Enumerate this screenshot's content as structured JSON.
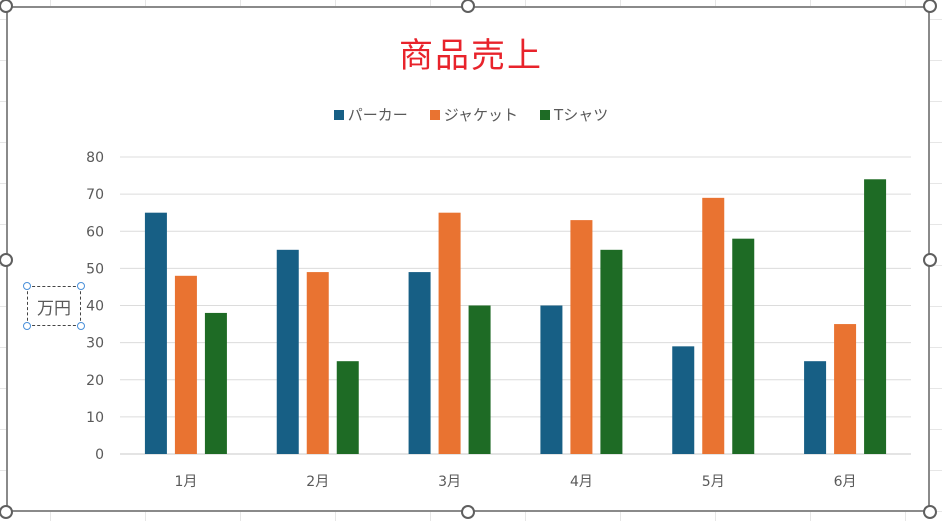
{
  "chart_data": {
    "type": "bar",
    "title": "商品売上",
    "ylabel": "万円",
    "categories": [
      "1月",
      "2月",
      "3月",
      "4月",
      "5月",
      "6月"
    ],
    "ylim": [
      0,
      80
    ],
    "yticks": [
      0,
      10,
      20,
      30,
      40,
      50,
      60,
      70,
      80
    ],
    "grid": true,
    "legend_position": "top",
    "series": [
      {
        "name": "パーカー",
        "color": "#175f85",
        "values": [
          65,
          55,
          49,
          40,
          29,
          25
        ]
      },
      {
        "name": "ジャケット",
        "color": "#e97331",
        "values": [
          48,
          49,
          65,
          63,
          69,
          35
        ]
      },
      {
        "name": "Tシャツ",
        "color": "#1e6b25",
        "values": [
          38,
          25,
          40,
          55,
          58,
          74
        ]
      }
    ]
  }
}
